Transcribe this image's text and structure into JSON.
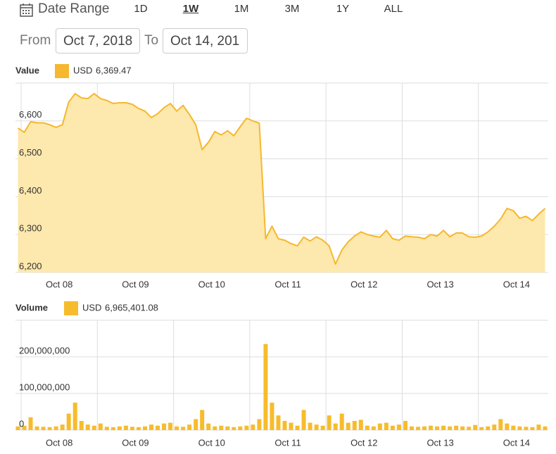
{
  "controls": {
    "title": "Date Range",
    "ranges": [
      "1D",
      "1W",
      "1M",
      "3M",
      "1Y",
      "ALL"
    ],
    "active_range": 1,
    "from_label": "From",
    "from_value": "Oct 7, 2018",
    "to_label": "To",
    "to_value": "Oct 14, 201"
  },
  "chart_data": [
    {
      "type": "area",
      "title": "Value",
      "x": [
        -1,
        1,
        3,
        5,
        7,
        9,
        11,
        13,
        15,
        17,
        19,
        21,
        23,
        25,
        27,
        29,
        31,
        33,
        35,
        37,
        39,
        41,
        43,
        45,
        47,
        49,
        51,
        53,
        55,
        57,
        59,
        61,
        63,
        65,
        67,
        69,
        71,
        73,
        75,
        77,
        79,
        81,
        83,
        85,
        87,
        89,
        91,
        93,
        95,
        97,
        99,
        101,
        103,
        105,
        107,
        109,
        111,
        113,
        115,
        117,
        119,
        121,
        123,
        125,
        127,
        129,
        131,
        133,
        135,
        137,
        139,
        141,
        143,
        145,
        147,
        149,
        151,
        153,
        155,
        157,
        159,
        161,
        163,
        165
      ],
      "series": [
        {
          "name": "USD",
          "color": "#f5b82e",
          "fill": "#fde8ad",
          "readout": {
            "value": 6369.47,
            "label": "6,369.47"
          },
          "values": [
            6581,
            6570,
            6598,
            6595,
            6595,
            6590,
            6583,
            6590,
            6650,
            6672,
            6661,
            6659,
            6672,
            6659,
            6654,
            6646,
            6648,
            6648,
            6644,
            6633,
            6626,
            6609,
            6619,
            6635,
            6646,
            6626,
            6641,
            6617,
            6590,
            6524,
            6544,
            6572,
            6563,
            6574,
            6561,
            6585,
            6607,
            6600,
            6594,
            6289,
            6322,
            6289,
            6285,
            6276,
            6270,
            6293,
            6283,
            6294,
            6285,
            6270,
            6222,
            6259,
            6281,
            6296,
            6307,
            6300,
            6296,
            6293,
            6311,
            6289,
            6285,
            6296,
            6294,
            6293,
            6289,
            6300,
            6296,
            6311,
            6294,
            6304,
            6304,
            6294,
            6293,
            6296,
            6307,
            6322,
            6341,
            6369,
            6363,
            6343,
            6348,
            6337,
            6354,
            6369
          ]
        }
      ],
      "xlim": [
        -1,
        166
      ],
      "xgrid": [
        0,
        24,
        48,
        72,
        96,
        120,
        144
      ],
      "xticks": [
        {
          "value": 12,
          "label": "Oct 08"
        },
        {
          "value": 36,
          "label": "Oct 09"
        },
        {
          "value": 60,
          "label": "Oct 10"
        },
        {
          "value": 84,
          "label": "Oct 11"
        },
        {
          "value": 108,
          "label": "Oct 12"
        },
        {
          "value": 132,
          "label": "Oct 13"
        },
        {
          "value": 156,
          "label": "Oct 14"
        }
      ],
      "ylim": [
        6200,
        6700
      ],
      "yticks": [
        {
          "value": 6200,
          "label": "6,200"
        },
        {
          "value": 6300,
          "label": "6,300"
        },
        {
          "value": 6400,
          "label": "6,400"
        },
        {
          "value": 6500,
          "label": "6,500"
        },
        {
          "value": 6600,
          "label": "6,600"
        }
      ],
      "grid": true
    },
    {
      "type": "bar",
      "title": "Volume",
      "x": [
        -1,
        1,
        3,
        5,
        7,
        9,
        11,
        13,
        15,
        17,
        19,
        21,
        23,
        25,
        27,
        29,
        31,
        33,
        35,
        37,
        39,
        41,
        43,
        45,
        47,
        49,
        51,
        53,
        55,
        57,
        59,
        61,
        63,
        65,
        67,
        69,
        71,
        73,
        75,
        77,
        79,
        81,
        83,
        85,
        87,
        89,
        91,
        93,
        95,
        97,
        99,
        101,
        103,
        105,
        107,
        109,
        111,
        113,
        115,
        117,
        119,
        121,
        123,
        125,
        127,
        129,
        131,
        133,
        135,
        137,
        139,
        141,
        143,
        145,
        147,
        149,
        151,
        153,
        155,
        157,
        159,
        161,
        163,
        165
      ],
      "series": [
        {
          "name": "USD",
          "color": "#f7bc2c",
          "readout": {
            "value": 6965401.08,
            "label": "6,965,401.08"
          },
          "values": [
            10000000,
            12000000,
            35000000,
            10000000,
            9000000,
            8000000,
            10000000,
            15000000,
            45000000,
            75000000,
            25000000,
            15000000,
            12000000,
            18000000,
            9000000,
            8000000,
            10000000,
            12000000,
            9000000,
            8000000,
            10000000,
            15000000,
            12000000,
            18000000,
            20000000,
            10000000,
            9000000,
            15000000,
            30000000,
            55000000,
            18000000,
            10000000,
            12000000,
            10000000,
            8000000,
            10000000,
            12000000,
            15000000,
            30000000,
            235000000,
            75000000,
            40000000,
            25000000,
            20000000,
            12000000,
            55000000,
            20000000,
            15000000,
            12000000,
            40000000,
            18000000,
            45000000,
            20000000,
            25000000,
            28000000,
            12000000,
            10000000,
            18000000,
            20000000,
            12000000,
            15000000,
            25000000,
            10000000,
            9000000,
            10000000,
            12000000,
            10000000,
            12000000,
            10000000,
            12000000,
            10000000,
            9000000,
            14000000,
            8000000,
            10000000,
            15000000,
            30000000,
            18000000,
            12000000,
            10000000,
            9000000,
            8000000,
            15000000,
            10000000
          ]
        }
      ],
      "xlim": [
        -1,
        166
      ],
      "xgrid": [
        0,
        24,
        48,
        72,
        96,
        120,
        144
      ],
      "xticks": [
        {
          "value": 12,
          "label": "Oct 08"
        },
        {
          "value": 36,
          "label": "Oct 09"
        },
        {
          "value": 60,
          "label": "Oct 10"
        },
        {
          "value": 84,
          "label": "Oct 11"
        },
        {
          "value": 108,
          "label": "Oct 12"
        },
        {
          "value": 132,
          "label": "Oct 13"
        },
        {
          "value": 156,
          "label": "Oct 14"
        }
      ],
      "ylim": [
        0,
        300000000
      ],
      "yticks": [
        0,
        {
          "value": 100000000,
          "label": "100,000,000"
        },
        {
          "value": 200000000,
          "label": "200,000,000"
        }
      ],
      "grid": true
    }
  ]
}
